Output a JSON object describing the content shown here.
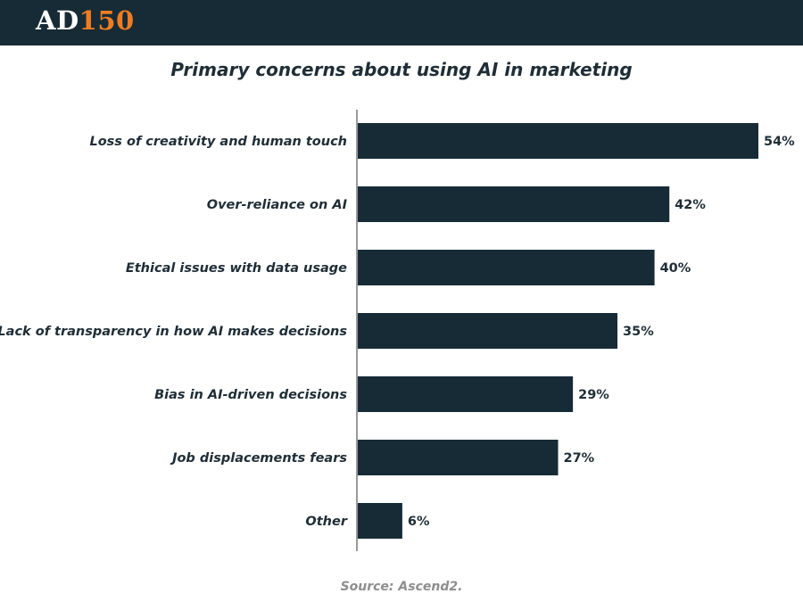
{
  "header": {
    "logo_text_main": "AD",
    "logo_text_accent": "150",
    "logo_accent_color": "#f07c22",
    "background_color": "#162b36"
  },
  "footer": {
    "source": "Source: Ascend2."
  },
  "chart_data": {
    "type": "bar",
    "orientation": "horizontal",
    "title": "Primary concerns about using AI in marketing",
    "xlabel": "",
    "ylabel": "",
    "categories": [
      "Loss of creativity and human touch",
      "Over-reliance on AI",
      "Ethical issues with data usage",
      "Lack of transparency in how AI makes decisions",
      "Bias in AI-driven decisions",
      "Job displacements fears",
      "Other"
    ],
    "values": [
      54,
      42,
      40,
      35,
      29,
      27,
      6
    ],
    "value_labels": [
      "54%",
      "42%",
      "40%",
      "35%",
      "29%",
      "27%",
      "6%"
    ],
    "unit": "%",
    "bar_color": "#162b36",
    "grid": false,
    "legend": "none"
  }
}
